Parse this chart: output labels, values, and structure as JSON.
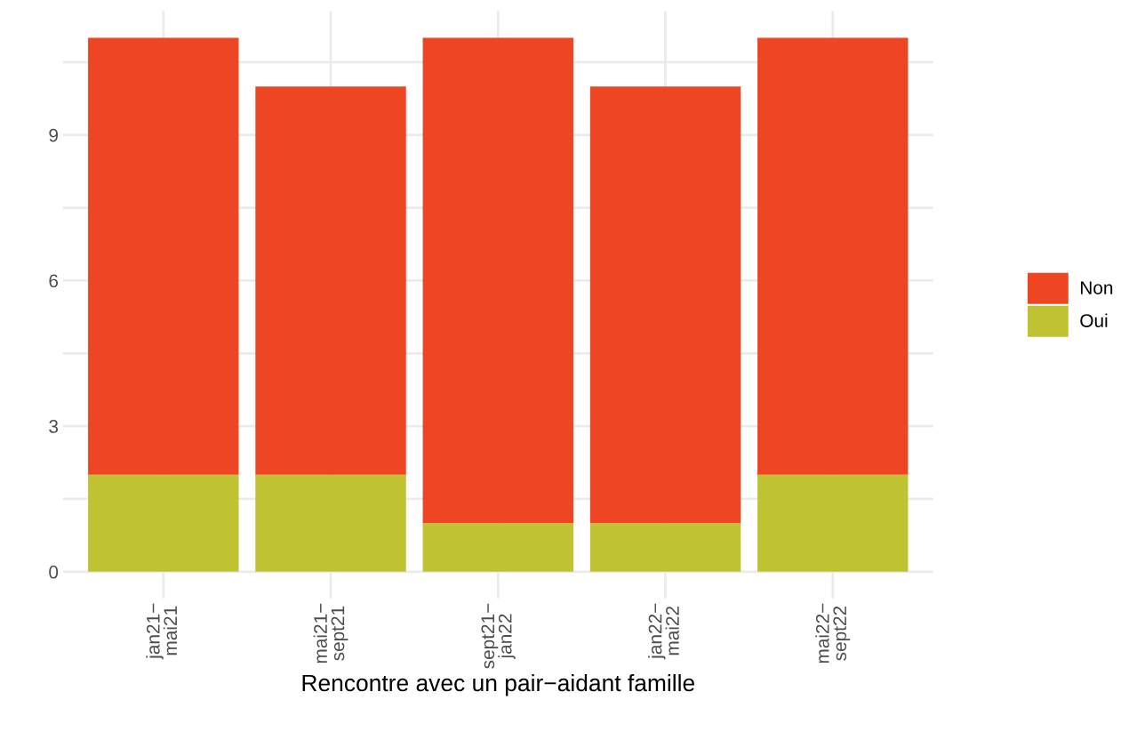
{
  "chart_data": {
    "type": "bar",
    "stacked": true,
    "xlabel": "Rencontre avec un pair−aidant famille",
    "categories": [
      "jan21−\nmai21",
      "mai21−\nsept21",
      "sept21−\njan22",
      "jan22−\nmai22",
      "mai22−\nsept22"
    ],
    "series": [
      {
        "name": "Oui",
        "color": "#c0c331",
        "values": [
          2,
          2,
          1,
          1,
          2
        ]
      },
      {
        "name": "Non",
        "color": "#ee4623",
        "values": [
          9,
          8,
          10,
          9,
          9
        ]
      }
    ],
    "ylim": [
      -0.55,
      11.55
    ],
    "yticks": [
      0,
      {
        "value": 1.5,
        "label": null
      },
      3,
      {
        "value": 4.5,
        "label": null
      },
      6,
      {
        "value": 7.5,
        "label": null
      },
      9,
      {
        "value": 10.5,
        "label": null
      }
    ],
    "grid": true,
    "legend": "right"
  }
}
